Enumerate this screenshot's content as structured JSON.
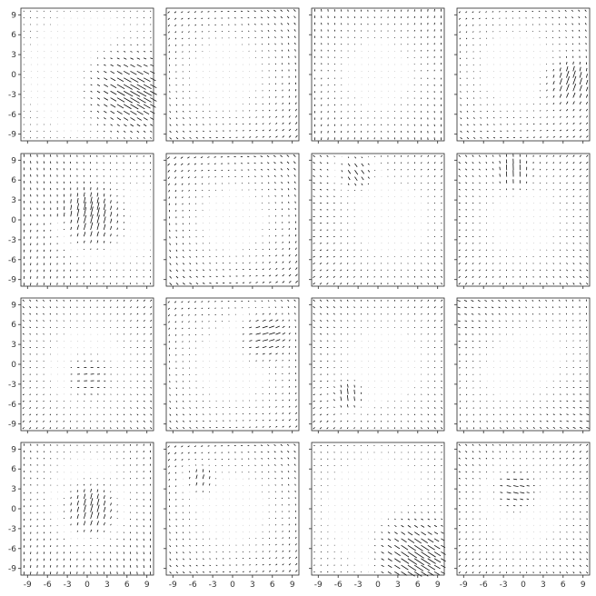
{
  "chart_data": {
    "type": "quiver-grid",
    "rows": 4,
    "cols": 4,
    "xlim": [
      -10,
      10
    ],
    "ylim": [
      -10,
      10
    ],
    "ticks": [
      -9,
      -6,
      -3,
      0,
      3,
      6,
      9
    ],
    "tick_labels": [
      "-9",
      "-6",
      "-3",
      "0",
      "3",
      "6",
      "9"
    ],
    "sharex": true,
    "sharey": true,
    "grid": false,
    "arrow_color": "#000000",
    "grid_points_per_axis": 20,
    "panels": [
      {
        "sources": [
          {
            "x": 6.5,
            "y": -2.5,
            "strength": 3.5,
            "mode": "stretch",
            "angle": -30,
            "sigma": 3.2
          },
          {
            "x": 0,
            "y": 0,
            "strength": 1.0,
            "mode": "radial",
            "sigma": 14
          }
        ]
      },
      {
        "sources": [
          {
            "x": -1,
            "y": 0,
            "strength": 1.4,
            "mode": "swirl",
            "sigma": 9
          }
        ]
      },
      {
        "sources": [
          {
            "x": 0,
            "y": 0,
            "strength": 1.4,
            "mode": "vertical",
            "sigma": 9
          }
        ]
      },
      {
        "sources": [
          {
            "x": 7,
            "y": -1.5,
            "strength": 2.5,
            "mode": "stretch",
            "angle": 70,
            "sigma": 1.8
          },
          {
            "x": -1,
            "y": 1,
            "strength": 1.2,
            "mode": "swirl",
            "sigma": 9
          }
        ]
      },
      {
        "sources": [
          {
            "x": 0.5,
            "y": 0,
            "strength": 3.2,
            "mode": "stretch",
            "angle": 75,
            "sigma": 2.5
          },
          {
            "x": 6,
            "y": 0,
            "strength": 1.1,
            "mode": "vertical",
            "sigma": 9
          }
        ]
      },
      {
        "sources": [
          {
            "x": 0,
            "y": 0,
            "strength": 1.6,
            "mode": "swirl",
            "sigma": 9
          }
        ]
      },
      {
        "sources": [
          {
            "x": -3.5,
            "y": 7.5,
            "strength": 2.2,
            "mode": "stretch",
            "angle": -55,
            "sigma": 1.8
          },
          {
            "x": 2,
            "y": 0,
            "strength": 1.2,
            "mode": "radial",
            "sigma": 9
          }
        ]
      },
      {
        "sources": [
          {
            "x": -1.5,
            "y": 7,
            "strength": 2.0,
            "mode": "stretch",
            "angle": 90,
            "sigma": 1.4
          },
          {
            "x": 0,
            "y": 0,
            "strength": 1.3,
            "mode": "radial",
            "sigma": 9
          }
        ]
      },
      {
        "sources": [
          {
            "x": 0,
            "y": 0,
            "strength": 1.2,
            "mode": "radial",
            "sigma": 9
          },
          {
            "x": 0,
            "y": -2,
            "strength": 1.2,
            "mode": "stretch",
            "angle": 5,
            "sigma": 2
          }
        ]
      },
      {
        "sources": [
          {
            "x": 5,
            "y": 4.5,
            "strength": 2.2,
            "mode": "stretch",
            "angle": 10,
            "sigma": 2.2
          },
          {
            "x": 0,
            "y": 0,
            "strength": 1.2,
            "mode": "swirl",
            "sigma": 9
          }
        ]
      },
      {
        "sources": [
          {
            "x": -4.5,
            "y": -5,
            "strength": 2.2,
            "mode": "stretch",
            "angle": 90,
            "sigma": 1.4
          },
          {
            "x": 1,
            "y": 0,
            "strength": 1.4,
            "mode": "radial",
            "sigma": 10
          }
        ]
      },
      {
        "sources": [
          {
            "x": 0,
            "y": 0,
            "strength": 1.5,
            "mode": "diag",
            "sigma": 9
          }
        ]
      },
      {
        "sources": [
          {
            "x": 0.5,
            "y": -0.5,
            "strength": 2.8,
            "mode": "stretch",
            "angle": 75,
            "sigma": 2.2
          },
          {
            "x": 0,
            "y": 3,
            "strength": 1.3,
            "mode": "vertical",
            "sigma": 9
          }
        ]
      },
      {
        "sources": [
          {
            "x": -5,
            "y": 4.5,
            "strength": 1.8,
            "mode": "stretch",
            "angle": 70,
            "sigma": 1.4
          },
          {
            "x": 0,
            "y": 0,
            "strength": 1.3,
            "mode": "swirl",
            "sigma": 9
          }
        ]
      },
      {
        "sources": [
          {
            "x": 5.5,
            "y": -7,
            "strength": 3.6,
            "mode": "stretch",
            "angle": -35,
            "sigma": 3.0
          },
          {
            "x": 0,
            "y": 0,
            "strength": 1.0,
            "mode": "horizontal",
            "sigma": 12
          }
        ]
      },
      {
        "sources": [
          {
            "x": -1.5,
            "y": 3,
            "strength": 1.8,
            "mode": "stretch",
            "angle": -15,
            "sigma": 1.8
          },
          {
            "x": 0,
            "y": 0,
            "strength": 1.2,
            "mode": "radial",
            "sigma": 9
          }
        ]
      }
    ]
  }
}
